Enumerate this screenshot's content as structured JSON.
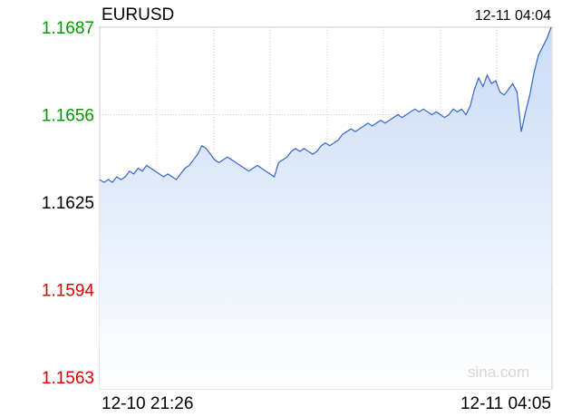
{
  "header": {
    "symbol": "EURUSD",
    "timestamp": "12-11 04:04"
  },
  "x_axis": {
    "start_label": "12-10 21:26",
    "end_label": "12-11 04:05"
  },
  "watermark": "sina.com",
  "colors": {
    "up": "#009900",
    "down": "#dd0000",
    "neutral": "#000000",
    "line": "#3366cc",
    "fill_top": "#c9dbf7",
    "fill_bottom": "#ffffff",
    "grid": "#d0d0d0",
    "baseline": "#8888aa"
  },
  "chart_data": {
    "type": "area",
    "title": "EURUSD",
    "xlabel": "",
    "ylabel": "",
    "ylim": [
      1.1563,
      1.1687
    ],
    "baseline": 1.1625,
    "y_ticks": [
      {
        "label": "1.1687",
        "value": 1.1687,
        "color": "up"
      },
      {
        "label": "1.1656",
        "value": 1.1656,
        "color": "up"
      },
      {
        "label": "1.1625",
        "value": 1.1625,
        "color": "neutral"
      },
      {
        "label": "1.1594",
        "value": 1.1594,
        "color": "down"
      },
      {
        "label": "1.1563",
        "value": 1.1563,
        "color": "down"
      }
    ],
    "x_ticks": [
      "12-10 21:26",
      "12-11 04:05"
    ],
    "grid": true,
    "series": [
      {
        "values": [
          1.1633,
          1.1632,
          1.1633,
          1.1632,
          1.1634,
          1.1633,
          1.1634,
          1.1636,
          1.1635,
          1.1637,
          1.1636,
          1.1638,
          1.1637,
          1.1636,
          1.1635,
          1.1634,
          1.1635,
          1.1634,
          1.1633,
          1.1635,
          1.1637,
          1.1638,
          1.164,
          1.1642,
          1.1645,
          1.1644,
          1.1642,
          1.164,
          1.1639,
          1.164,
          1.1641,
          1.164,
          1.1639,
          1.1638,
          1.1637,
          1.1636,
          1.1637,
          1.1638,
          1.1637,
          1.1636,
          1.1635,
          1.1634,
          1.1639,
          1.164,
          1.1641,
          1.1643,
          1.1644,
          1.1643,
          1.1644,
          1.1643,
          1.1642,
          1.1643,
          1.1645,
          1.1646,
          1.1645,
          1.1646,
          1.1647,
          1.1649,
          1.165,
          1.1651,
          1.165,
          1.1651,
          1.1652,
          1.1653,
          1.1652,
          1.1653,
          1.1654,
          1.1653,
          1.1654,
          1.1655,
          1.1656,
          1.1655,
          1.1656,
          1.1657,
          1.1658,
          1.1657,
          1.1658,
          1.1657,
          1.1656,
          1.1657,
          1.1656,
          1.1655,
          1.1656,
          1.1658,
          1.1657,
          1.1658,
          1.1656,
          1.1659,
          1.1665,
          1.1669,
          1.1666,
          1.167,
          1.1667,
          1.1668,
          1.1664,
          1.1663,
          1.1665,
          1.1667,
          1.1664,
          1.165,
          1.1657,
          1.1663,
          1.1671,
          1.1677,
          1.168,
          1.1683,
          1.1687
        ]
      }
    ]
  }
}
